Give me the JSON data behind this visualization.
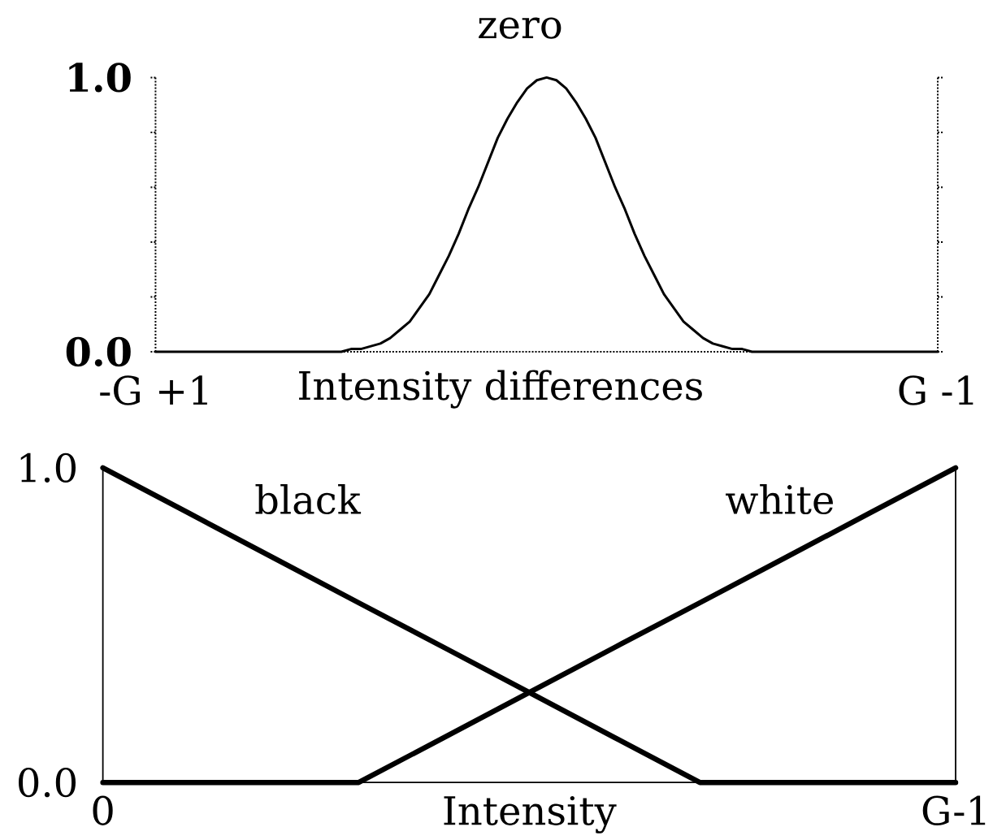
{
  "chart_data": [
    {
      "type": "line",
      "xlabel": "Intensity differences",
      "categories": [
        "-G +1",
        null,
        null,
        null,
        null,
        null,
        null,
        null,
        null,
        null,
        null,
        null,
        null,
        null,
        null,
        null,
        null,
        null,
        null,
        null,
        null,
        null,
        null,
        null,
        null,
        null,
        null,
        null,
        null,
        null,
        null,
        null,
        null,
        null,
        null,
        null,
        null,
        null,
        null,
        null,
        null,
        null,
        null,
        null,
        null,
        null,
        null,
        null,
        null,
        null,
        null,
        null,
        null,
        null,
        null,
        null,
        null,
        null,
        null,
        null,
        null,
        null,
        null,
        null,
        null,
        null,
        null,
        null,
        null,
        null,
        null,
        null,
        null,
        null,
        null,
        null,
        null,
        null,
        null,
        null,
        "G -1"
      ],
      "series": [
        {
          "name": "zero",
          "color": "#000000",
          "values": [
            0,
            0,
            0,
            0,
            0,
            0,
            0,
            0,
            0,
            0,
            0,
            0,
            0,
            0,
            0,
            0,
            0,
            0,
            0,
            0,
            0.01,
            0.01,
            0.02,
            0.03,
            0.05,
            0.08,
            0.11,
            0.16,
            0.21,
            0.28,
            0.35,
            0.43,
            0.52,
            0.6,
            0.69,
            0.78,
            0.85,
            0.91,
            0.96,
            0.99,
            1,
            0.99,
            0.96,
            0.91,
            0.85,
            0.78,
            0.69,
            0.6,
            0.52,
            0.43,
            0.35,
            0.28,
            0.21,
            0.16,
            0.11,
            0.08,
            0.05,
            0.03,
            0.02,
            0.01,
            0.01,
            0,
            0,
            0,
            0,
            0,
            0,
            0,
            0,
            0,
            0,
            0,
            0,
            0,
            0,
            0,
            0,
            0,
            0,
            0,
            0
          ]
        }
      ],
      "ylim": [
        0,
        1
      ],
      "yticks": [
        {
          "value": 0,
          "label": "0.0"
        },
        {
          "value": 0.2,
          "label": null
        },
        {
          "value": 0.4,
          "label": null
        },
        {
          "value": 0.6,
          "label": null
        },
        {
          "value": 0.8,
          "label": null
        },
        {
          "value": 1,
          "label": "1.0"
        }
      ]
    },
    {
      "type": "line",
      "xlabel": "Intensity",
      "categories": [
        "0",
        null,
        null,
        null,
        null,
        null,
        null,
        null,
        null,
        null,
        "G-1"
      ],
      "series": [
        {
          "name": "black",
          "color": "#000000",
          "values": [
            1,
            0.857,
            0.714,
            0.571,
            0.429,
            0.286,
            0.143,
            0,
            0,
            0,
            0
          ]
        },
        {
          "name": "white",
          "color": "#000000",
          "values": [
            0,
            0,
            0,
            0,
            0.143,
            0.286,
            0.429,
            0.571,
            0.714,
            0.857,
            1
          ]
        }
      ],
      "ylim": [
        0,
        1
      ],
      "yticks": [
        {
          "value": 0,
          "label": "0.0"
        },
        {
          "value": 1,
          "label": "1.0"
        }
      ]
    }
  ]
}
